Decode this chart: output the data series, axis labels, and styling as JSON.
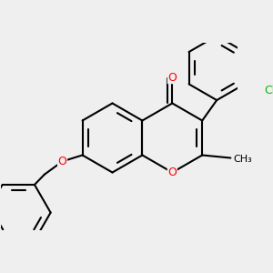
{
  "bg_color": "#efefef",
  "bond_color": "#000000",
  "bond_width": 1.5,
  "atom_colors": {
    "O": "#ff0000",
    "Cl": "#00bb00"
  },
  "font_size_atom": 9,
  "font_size_methyl": 8
}
